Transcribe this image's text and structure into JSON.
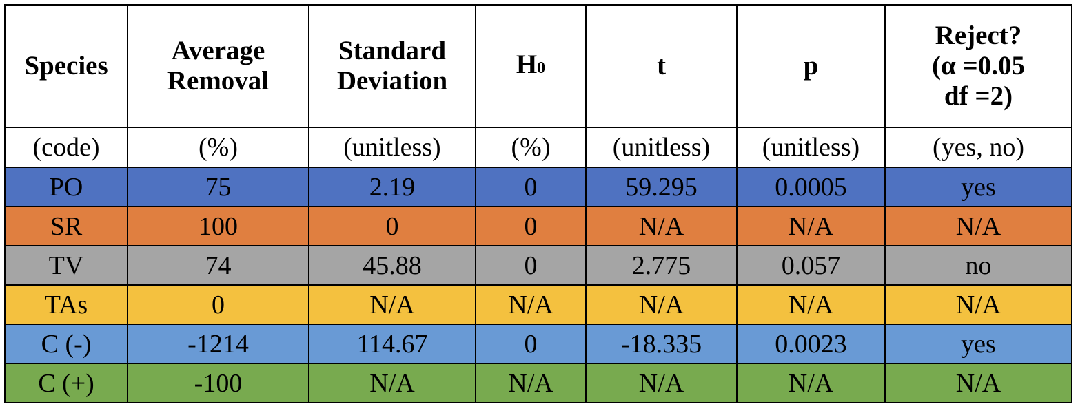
{
  "columns": [
    {
      "key": "species",
      "lines": [
        "Species"
      ]
    },
    {
      "key": "avg",
      "lines": [
        "Average",
        "Removal"
      ]
    },
    {
      "key": "sd",
      "lines": [
        "Standard",
        "Deviation"
      ]
    },
    {
      "key": "h0",
      "label": "H",
      "sub": "0"
    },
    {
      "key": "t",
      "lines": [
        "t"
      ]
    },
    {
      "key": "p",
      "lines": [
        "p"
      ]
    },
    {
      "key": "reject",
      "lines": [
        "Reject?",
        "(α =0.05",
        "df =2)"
      ]
    }
  ],
  "units": [
    "(code)",
    "(%)",
    "(unitless)",
    "(%)",
    "(unitless)",
    "(unitless)",
    "(yes, no)"
  ],
  "rows": [
    {
      "color": "#4f72c1",
      "cells": [
        "PO",
        "75",
        "2.19",
        "0",
        "59.295",
        "0.0005",
        "yes"
      ]
    },
    {
      "color": "#e07f40",
      "cells": [
        "SR",
        "100",
        "0",
        "0",
        "N/A",
        "N/A",
        "N/A"
      ]
    },
    {
      "color": "#a5a5a5",
      "cells": [
        "TV",
        "74",
        "45.88",
        "0",
        "2.775",
        "0.057",
        "no"
      ]
    },
    {
      "color": "#f4c13f",
      "cells": [
        "TAs",
        "0",
        "N/A",
        "N/A",
        "N/A",
        "N/A",
        "N/A"
      ]
    },
    {
      "color": "#699ad5",
      "cells": [
        "C (-)",
        "-1214",
        "114.67",
        "0",
        "-18.335",
        "0.0023",
        "yes"
      ]
    },
    {
      "color": "#78aa4f",
      "cells": [
        "C (+)",
        "-100",
        "N/A",
        "N/A",
        "N/A",
        "N/A",
        "N/A"
      ]
    }
  ]
}
